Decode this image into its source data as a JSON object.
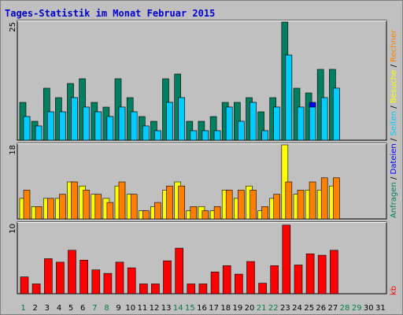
{
  "chart_data": {
    "type": "bar",
    "title": "Tages-Statistik im Monat Februar 2015",
    "days": [
      "1",
      "2",
      "3",
      "4",
      "5",
      "6",
      "7",
      "8",
      "9",
      "10",
      "11",
      "12",
      "13",
      "14",
      "15",
      "16",
      "17",
      "18",
      "19",
      "20",
      "21",
      "22",
      "23",
      "24",
      "25",
      "26",
      "27",
      "28",
      "29",
      "30",
      "31"
    ],
    "weekend_days": [
      "1",
      "7",
      "8",
      "14",
      "15",
      "21",
      "22",
      "28",
      "29"
    ],
    "panels": [
      {
        "id": "hits",
        "ymax": 25,
        "ymax_label": "25",
        "series": [
          {
            "name": "Anfragen",
            "color": "#008060",
            "values": [
              8,
              4,
              11,
              9,
              12,
              13,
              8,
              7,
              13,
              9,
              5,
              4,
              13,
              14,
              4,
              4,
              5,
              8,
              8,
              9,
              6,
              9,
              25,
              11,
              10,
              15,
              15
            ]
          },
          {
            "name": "Dateien",
            "color": "#0000ff",
            "values": [
              5,
              3,
              6,
              6,
              9,
              7,
              6,
              5,
              7,
              6,
              3,
              2,
              8,
              9,
              2,
              2,
              2,
              7,
              4,
              8,
              2,
              7,
              18,
              7,
              8,
              9,
              11
            ]
          },
          {
            "name": "Seiten",
            "color": "#00ccff",
            "values": [
              5,
              3,
              6,
              6,
              9,
              7,
              6,
              5,
              7,
              6,
              3,
              2,
              8,
              9,
              2,
              2,
              2,
              7,
              4,
              8,
              2,
              7,
              18,
              7,
              7,
              9,
              11
            ]
          }
        ]
      },
      {
        "id": "visits",
        "ymax": 18,
        "ymax_label": "18",
        "series": [
          {
            "name": "Besuche",
            "color": "#ffff00",
            "values": [
              5,
              3,
              5,
              5,
              9,
              8,
              6,
              5,
              8,
              6,
              2,
              3,
              7,
              9,
              2,
              3,
              2,
              7,
              5,
              8,
              2,
              5,
              18,
              6,
              7,
              7,
              8
            ]
          },
          {
            "name": "Rechner",
            "color": "#ff8000",
            "values": [
              7,
              3,
              5,
              6,
              9,
              7,
              6,
              4,
              9,
              6,
              2,
              4,
              8,
              8,
              3,
              2,
              3,
              7,
              7,
              7,
              3,
              6,
              9,
              7,
              9,
              10,
              10
            ]
          }
        ]
      },
      {
        "id": "kb",
        "ymax": 10,
        "ymax_label": "10",
        "series": [
          {
            "name": "kb",
            "color": "#ff0000",
            "values": [
              2.4,
              1.4,
              5.0,
              4.5,
              6.2,
              4.8,
              3.4,
              2.9,
              4.5,
              3.7,
              1.4,
              1.4,
              4.7,
              6.5,
              1.4,
              1.4,
              3.1,
              4.0,
              2.8,
              4.6,
              1.5,
              4.0,
              9.8,
              4.1,
              5.7,
              5.5,
              6.2
            ]
          }
        ]
      }
    ],
    "side_labels": {
      "top": [
        {
          "text": "Anfragen",
          "color": "#008060"
        },
        {
          "text": " / ",
          "color": "#000000"
        },
        {
          "text": "Dateien",
          "color": "#0000ff"
        },
        {
          "text": " / ",
          "color": "#000000"
        },
        {
          "text": "Seiten",
          "color": "#00ccff"
        },
        {
          "text": " / ",
          "color": "#000000"
        },
        {
          "text": "Besuche",
          "color": "#ffff00"
        },
        {
          "text": " / ",
          "color": "#000000"
        },
        {
          "text": "Rechner",
          "color": "#ff8000"
        }
      ],
      "bottom": {
        "text": "kb",
        "color": "#ff0000"
      }
    },
    "colors": {
      "background": "#c0c0c0",
      "weekday_label": "#000000",
      "weekend_label": "#008040"
    }
  }
}
